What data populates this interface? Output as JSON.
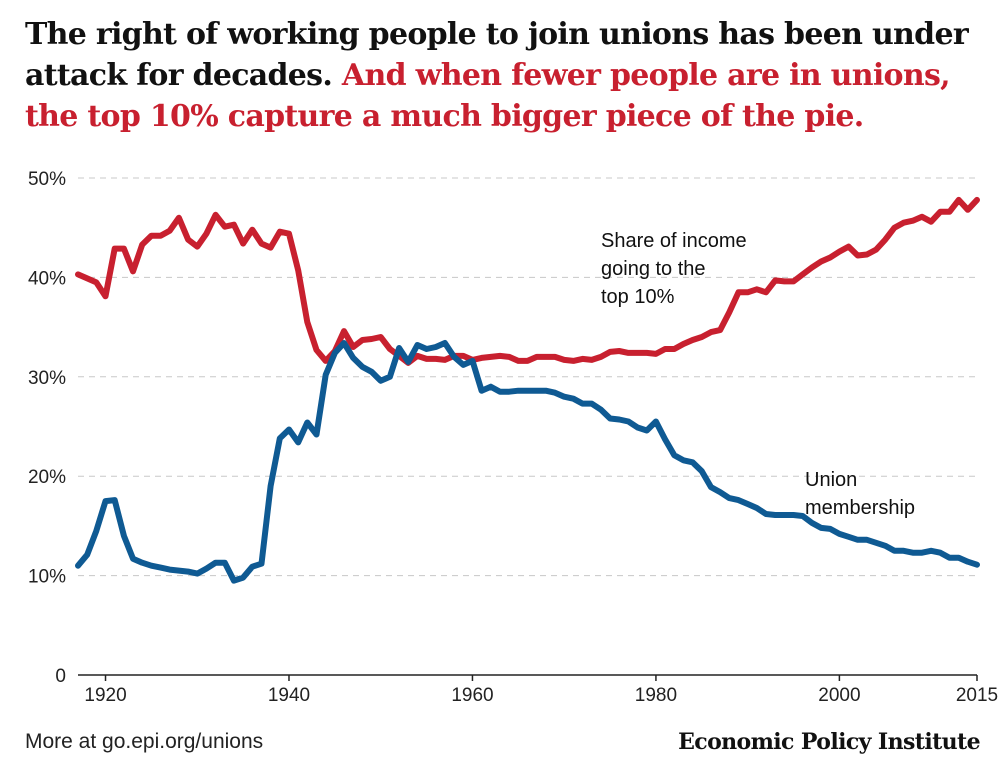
{
  "header": {
    "headline_black": "The right of working people to join unions has been under attack for decades.",
    "headline_red": "And when fewer people are in unions, the top 10% capture a much bigger piece of the pie."
  },
  "colors": {
    "top10": "#c8202f",
    "union": "#0f5a93",
    "headline_red": "#c8202f"
  },
  "footer": {
    "link_text": "More at go.epi.org/unions",
    "org_name": "Economic Policy Institute"
  },
  "chart_data": {
    "type": "line",
    "title": "",
    "xlabel": "",
    "ylabel": "",
    "xlim": [
      1917,
      2015
    ],
    "ylim": [
      0,
      50
    ],
    "x_ticks": [
      1920,
      1940,
      1960,
      1980,
      2000,
      2015
    ],
    "x_tick_labels": [
      "1920",
      "1940",
      "1960",
      "1980",
      "2000",
      "2015"
    ],
    "y_ticks": [
      0,
      10,
      20,
      30,
      40,
      50
    ],
    "y_tick_labels": [
      "0",
      "10%",
      "20%",
      "30%",
      "40%",
      "50%"
    ],
    "grid": "horizontal dashed",
    "series": [
      {
        "name": "Share of income going to the top 10%",
        "label_lines": [
          "Share of income",
          "going to the",
          "top 10%"
        ],
        "color": "#c8202f",
        "x": [
          1917,
          1918,
          1919,
          1920,
          1921,
          1922,
          1923,
          1924,
          1925,
          1926,
          1927,
          1928,
          1929,
          1930,
          1931,
          1932,
          1933,
          1934,
          1935,
          1936,
          1937,
          1938,
          1939,
          1940,
          1941,
          1942,
          1943,
          1944,
          1945,
          1946,
          1947,
          1948,
          1949,
          1950,
          1951,
          1952,
          1953,
          1954,
          1955,
          1956,
          1957,
          1958,
          1959,
          1960,
          1961,
          1962,
          1963,
          1964,
          1965,
          1966,
          1967,
          1968,
          1969,
          1970,
          1971,
          1972,
          1973,
          1974,
          1975,
          1976,
          1977,
          1978,
          1979,
          1980,
          1981,
          1982,
          1983,
          1984,
          1985,
          1986,
          1987,
          1988,
          1989,
          1990,
          1991,
          1992,
          1993,
          1994,
          1995,
          1996,
          1997,
          1998,
          1999,
          2000,
          2001,
          2002,
          2003,
          2004,
          2005,
          2006,
          2007,
          2008,
          2009,
          2010,
          2011,
          2012,
          2013,
          2014,
          2015
        ],
        "values": [
          40.3,
          39.9,
          39.5,
          38.1,
          42.9,
          42.9,
          40.6,
          43.3,
          44.2,
          44.2,
          44.7,
          46.0,
          43.8,
          43.1,
          44.4,
          46.3,
          45.1,
          45.3,
          43.4,
          44.8,
          43.4,
          43.0,
          44.6,
          44.4,
          40.7,
          35.5,
          32.7,
          31.6,
          32.6,
          34.6,
          33.0,
          33.7,
          33.8,
          34.0,
          32.8,
          32.1,
          31.4,
          32.1,
          31.8,
          31.8,
          31.7,
          32.1,
          32.1,
          31.7,
          31.9,
          32.0,
          32.1,
          32.0,
          31.6,
          31.6,
          32.0,
          32.0,
          32.0,
          31.7,
          31.6,
          31.8,
          31.7,
          32.0,
          32.5,
          32.6,
          32.4,
          32.4,
          32.4,
          32.3,
          32.8,
          32.8,
          33.3,
          33.7,
          34.0,
          34.5,
          34.7,
          36.5,
          38.5,
          38.5,
          38.8,
          38.5,
          39.7,
          39.6,
          39.6,
          40.3,
          41.0,
          41.6,
          42.0,
          42.6,
          43.1,
          42.2,
          42.3,
          42.8,
          43.8,
          45.0,
          45.5,
          45.7,
          46.1,
          45.6,
          46.6,
          46.6,
          47.8,
          46.8,
          47.8
        ]
      },
      {
        "name": "Union membership",
        "label_lines": [
          "Union",
          "membership"
        ],
        "color": "#0f5a93",
        "x": [
          1917,
          1918,
          1919,
          1920,
          1921,
          1922,
          1923,
          1924,
          1925,
          1926,
          1927,
          1928,
          1929,
          1930,
          1931,
          1932,
          1933,
          1934,
          1935,
          1936,
          1937,
          1938,
          1939,
          1940,
          1941,
          1942,
          1943,
          1944,
          1945,
          1946,
          1947,
          1948,
          1949,
          1950,
          1951,
          1952,
          1953,
          1954,
          1955,
          1956,
          1957,
          1958,
          1959,
          1960,
          1961,
          1962,
          1963,
          1964,
          1965,
          1966,
          1967,
          1968,
          1969,
          1970,
          1971,
          1972,
          1973,
          1974,
          1975,
          1976,
          1977,
          1978,
          1979,
          1980,
          1981,
          1982,
          1983,
          1984,
          1985,
          1986,
          1987,
          1988,
          1989,
          1990,
          1991,
          1992,
          1993,
          1994,
          1995,
          1996,
          1997,
          1998,
          1999,
          2000,
          2001,
          2002,
          2003,
          2004,
          2005,
          2006,
          2007,
          2008,
          2009,
          2010,
          2011,
          2012,
          2013,
          2014,
          2015
        ],
        "values": [
          11.0,
          12.1,
          14.5,
          17.5,
          17.6,
          14.0,
          11.7,
          11.3,
          11.0,
          10.8,
          10.6,
          10.5,
          10.4,
          10.2,
          10.7,
          11.3,
          11.3,
          9.5,
          9.8,
          10.9,
          11.2,
          19.0,
          23.8,
          24.7,
          23.4,
          25.4,
          24.2,
          30.2,
          32.4,
          33.4,
          31.9,
          31.0,
          30.5,
          29.6,
          30.0,
          32.9,
          31.5,
          33.2,
          32.8,
          33.0,
          33.4,
          32.0,
          31.2,
          31.6,
          28.6,
          29.0,
          28.5,
          28.5,
          28.6,
          28.6,
          28.6,
          28.6,
          28.4,
          28.0,
          27.8,
          27.3,
          27.3,
          26.7,
          25.8,
          25.7,
          25.5,
          24.9,
          24.6,
          25.5,
          23.7,
          22.1,
          21.6,
          21.4,
          20.5,
          18.9,
          18.4,
          17.8,
          17.6,
          17.2,
          16.8,
          16.2,
          16.1,
          16.1,
          16.1,
          16.0,
          15.3,
          14.8,
          14.7,
          14.2,
          13.9,
          13.6,
          13.6,
          13.3,
          13.0,
          12.5,
          12.5,
          12.3,
          12.3,
          12.5,
          12.3,
          11.8,
          11.8,
          11.4,
          11.1
        ]
      }
    ]
  }
}
